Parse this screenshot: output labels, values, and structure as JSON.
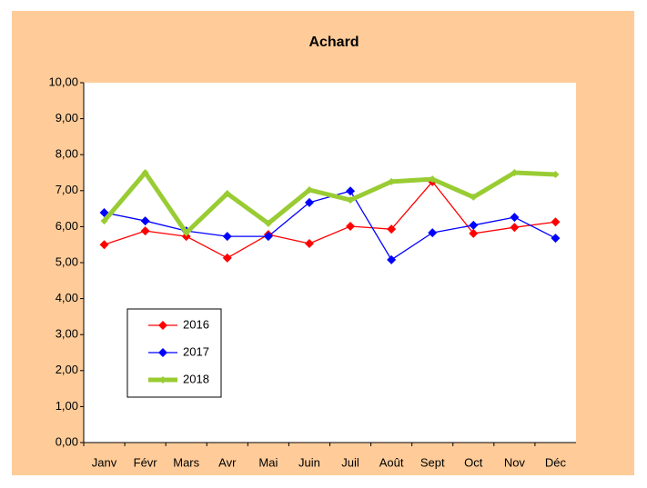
{
  "chart_data": {
    "type": "line",
    "title": "Achard",
    "categories": [
      "Janv",
      "Févr",
      "Mars",
      "Avr",
      "Mai",
      "Juin",
      "Juil",
      "Août",
      "Sept",
      "Oct",
      "Nov",
      "Déc"
    ],
    "series": [
      {
        "name": "2016",
        "color": "#ff0000",
        "values": [
          5.5,
          5.88,
          5.73,
          5.13,
          5.78,
          5.53,
          6.01,
          5.93,
          7.25,
          5.81,
          5.98,
          6.13
        ]
      },
      {
        "name": "2017",
        "color": "#0000ff",
        "values": [
          6.39,
          6.16,
          5.88,
          5.73,
          5.73,
          6.67,
          6.99,
          5.08,
          5.83,
          6.04,
          6.26,
          5.68
        ]
      },
      {
        "name": "2018",
        "color": "#99cc33",
        "values": [
          6.16,
          7.5,
          5.83,
          6.92,
          6.09,
          7.02,
          6.74,
          7.25,
          7.32,
          6.82,
          7.5,
          7.45
        ]
      }
    ],
    "ylim": [
      0,
      10
    ],
    "yticks": [
      {
        "value": 0,
        "label": "0,00"
      },
      {
        "value": 1,
        "label": "1,00"
      },
      {
        "value": 2,
        "label": "2,00"
      },
      {
        "value": 3,
        "label": "3,00"
      },
      {
        "value": 4,
        "label": "4,00"
      },
      {
        "value": 5,
        "label": "5,00"
      },
      {
        "value": 6,
        "label": "6,00"
      },
      {
        "value": 7,
        "label": "7,00"
      },
      {
        "value": 8,
        "label": "8,00"
      },
      {
        "value": 9,
        "label": "9,00"
      },
      {
        "value": 10,
        "label": "10,00"
      }
    ],
    "grid": false
  }
}
